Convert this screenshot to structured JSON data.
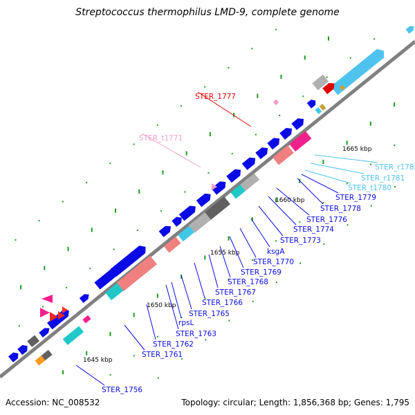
{
  "title": "Streptococcus thermophilus LMD-9, complete genome",
  "footer": {
    "accession": "Accession: NC_008532",
    "summary": "Topology: circular; Length: 1,856,368 bp; Genes: 1,795"
  },
  "colors": {
    "cds": "#0a0ae6",
    "rna": "#4fc3ee",
    "trna": "#f0a0c8",
    "rrna": "#40c8e8",
    "highlight": "#dd0000",
    "cog_teal": "#20c8c8",
    "cog_pink": "#f08080",
    "cog_magenta": "#f0208c",
    "cog_gray": "#b0b0b0",
    "cog_dark": "#606060",
    "backbone": "#808080",
    "tick": "#1a9a1a"
  },
  "position_marks": [
    "1645 kbp",
    "1650 kbp",
    "1655 kbp",
    "1660 kbp",
    "1665 kbp"
  ],
  "gene_labels": [
    {
      "text": "STER_1777",
      "kind": "highlight"
    },
    {
      "text": "STER_t1771",
      "kind": "trna"
    },
    {
      "text": "STER_r1782",
      "kind": "rna"
    },
    {
      "text": "STER_r1781",
      "kind": "rna"
    },
    {
      "text": "STER_t1780",
      "kind": "rna"
    },
    {
      "text": "STER_1779",
      "kind": "cds"
    },
    {
      "text": "STER_1778",
      "kind": "cds"
    },
    {
      "text": "STER_1776",
      "kind": "cds"
    },
    {
      "text": "STER_1774",
      "kind": "cds"
    },
    {
      "text": "STER_1773",
      "kind": "cds"
    },
    {
      "text": "ksgA",
      "kind": "cds"
    },
    {
      "text": "STER_1770",
      "kind": "cds"
    },
    {
      "text": "STER_1769",
      "kind": "cds"
    },
    {
      "text": "STER_1768",
      "kind": "cds"
    },
    {
      "text": "STER_1767",
      "kind": "cds"
    },
    {
      "text": "STER_1766",
      "kind": "cds"
    },
    {
      "text": "STER_1765",
      "kind": "cds"
    },
    {
      "text": "STER_1763",
      "kind": "cds"
    },
    {
      "text": "rpsL",
      "kind": "cds"
    },
    {
      "text": "STER_1762",
      "kind": "cds"
    },
    {
      "text": "STER_1761",
      "kind": "cds"
    },
    {
      "text": "STER_1756",
      "kind": "cds"
    }
  ]
}
